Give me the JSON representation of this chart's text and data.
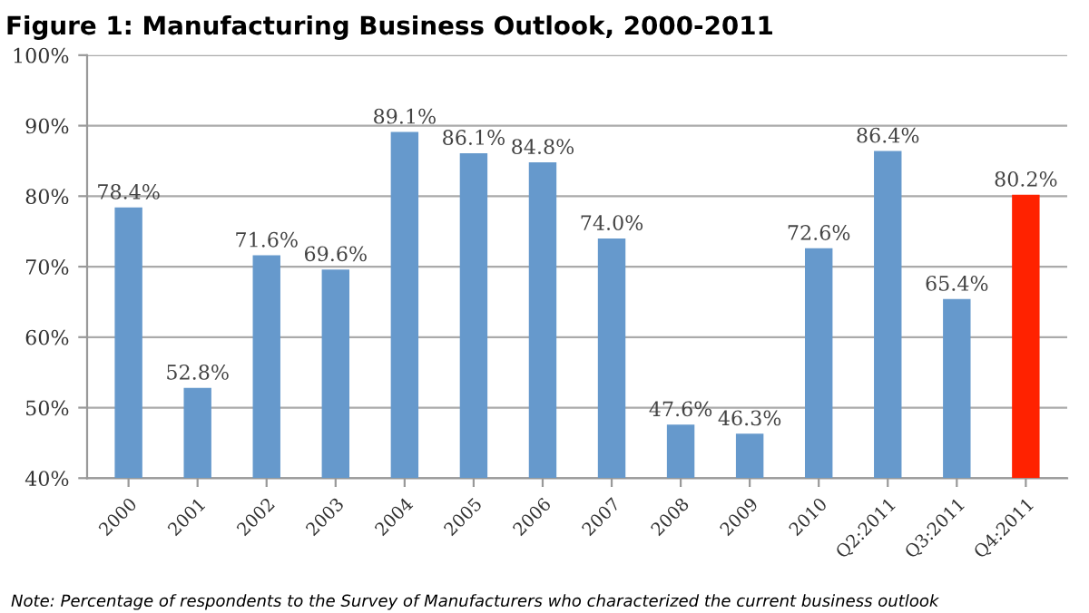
{
  "chart_data": {
    "type": "bar",
    "title": "Figure 1: Manufacturing Business Outlook, 2000-2011",
    "categories": [
      "2000",
      "2001",
      "2002",
      "2003",
      "2004",
      "2005",
      "2006",
      "2007",
      "2008",
      "2009",
      "2010",
      "Q2:2011",
      "Q3:2011",
      "Q4:2011"
    ],
    "values": [
      78.4,
      52.8,
      71.6,
      69.6,
      89.1,
      86.1,
      84.8,
      74.0,
      47.6,
      46.3,
      72.6,
      86.4,
      65.4,
      80.2
    ],
    "value_labels": [
      "78.4%",
      "52.8%",
      "71.6%",
      "69.6%",
      "89.1%",
      "86.1%",
      "84.8%",
      "74.0%",
      "47.6%",
      "46.3%",
      "72.6%",
      "86.4%",
      "65.4%",
      "80.2%"
    ],
    "colors": [
      "#6699cc",
      "#6699cc",
      "#6699cc",
      "#6699cc",
      "#6699cc",
      "#6699cc",
      "#6699cc",
      "#6699cc",
      "#6699cc",
      "#6699cc",
      "#6699cc",
      "#6699cc",
      "#6699cc",
      "#ff2200"
    ],
    "ylim": [
      40,
      100
    ],
    "yticks": [
      {
        "value": 40,
        "label": "40%"
      },
      {
        "value": 50,
        "label": "50%"
      },
      {
        "value": 60,
        "label": "60%"
      },
      {
        "value": 70,
        "label": "70%"
      },
      {
        "value": 80,
        "label": "80%"
      },
      {
        "value": 90,
        "label": "90%"
      },
      {
        "value": 100,
        "label": "100%"
      }
    ],
    "grid": "y",
    "annotations": [
      "Note: Percentage of respondents to the Survey of Manufacturers who characterized the current business outlook"
    ]
  }
}
